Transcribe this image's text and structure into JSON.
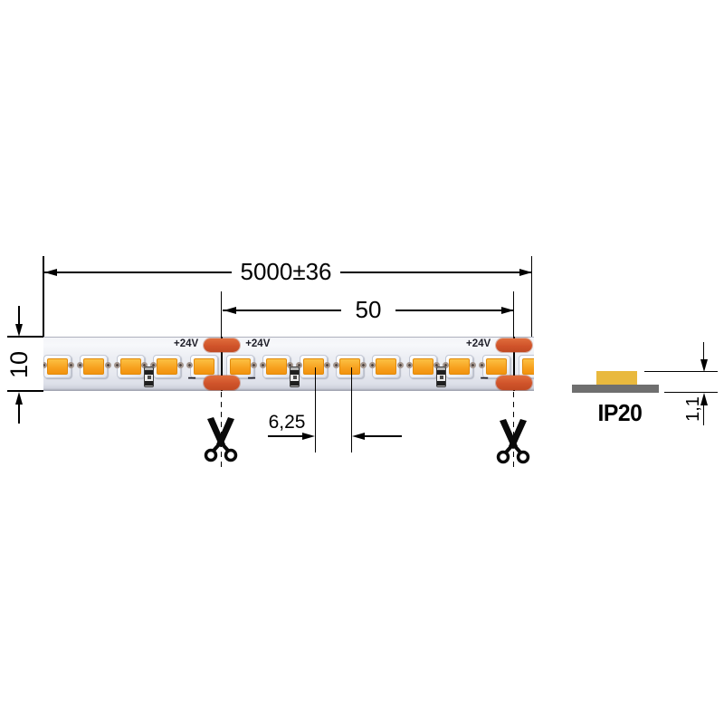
{
  "drawing": {
    "title": "LED strip dimensional drawing",
    "dims": {
      "overall_length": "5000±36",
      "cut_segment_length": "50",
      "led_pitch": "6,25",
      "strip_width": "10",
      "profile_height": "1,1"
    },
    "labels": {
      "voltage": "+24V",
      "minus": "−",
      "ip_rating": "IP20"
    },
    "strip": {
      "led_count": 14,
      "gap_count": 14,
      "cut_gaps": [
        5,
        13
      ],
      "resistor_gaps": [
        3,
        7,
        11
      ]
    },
    "icons": {
      "cut_marker": "scissors-icon"
    },
    "colors": {
      "line": "#000000",
      "led_emitter": "#f7a01e",
      "led_package": "#ffffff",
      "solder_pad": "#d0532a",
      "strip_pcb": "#e9ebf1",
      "profile_pcb": "#6f6f6f",
      "profile_led": "#e9b93e"
    }
  }
}
